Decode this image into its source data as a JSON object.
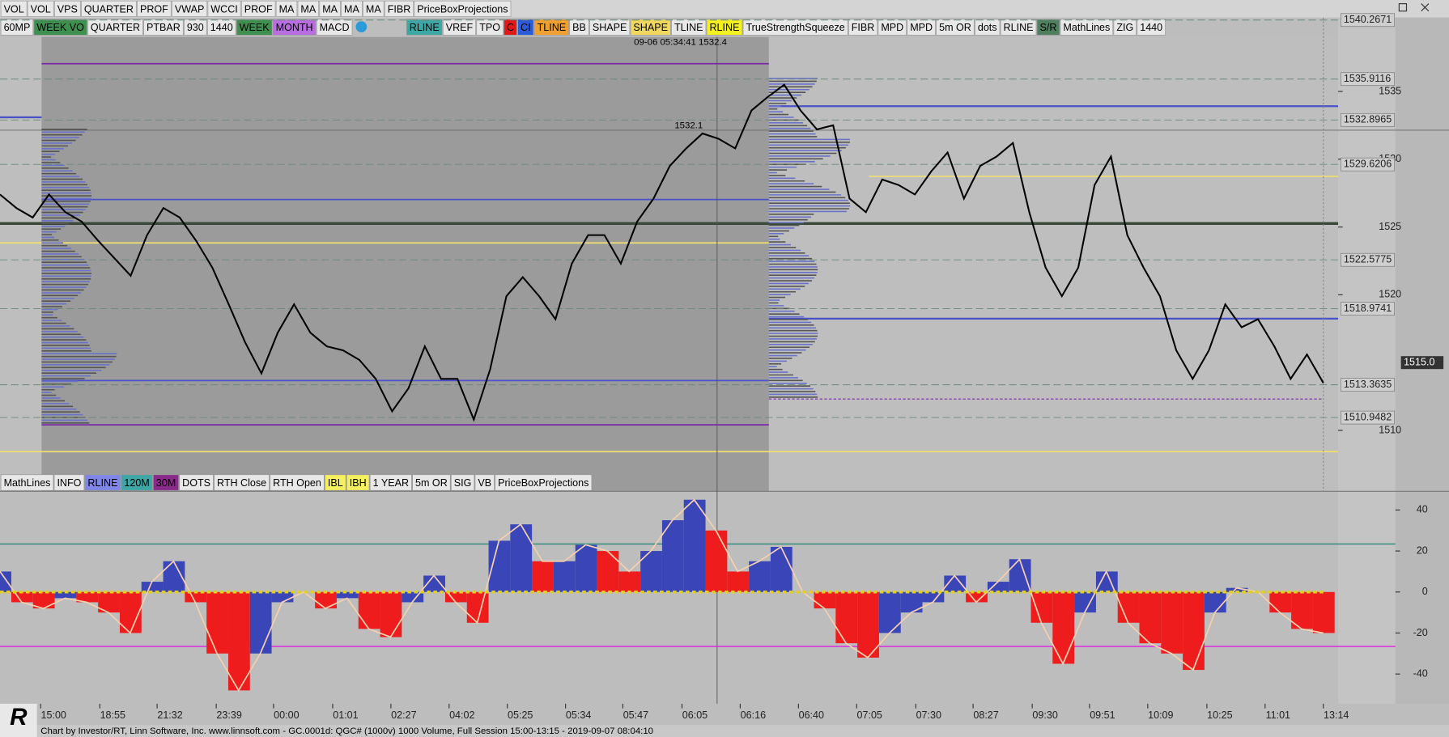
{
  "toolbar_top": [
    {
      "label": "VOL"
    },
    {
      "label": "VOL"
    },
    {
      "label": "VPS"
    },
    {
      "label": "QUARTER"
    },
    {
      "label": "PROF"
    },
    {
      "label": "VWAP"
    },
    {
      "label": "WCCI"
    },
    {
      "label": "PROF"
    },
    {
      "label": "MA"
    },
    {
      "label": "MA"
    },
    {
      "label": "MA"
    },
    {
      "label": "MA"
    },
    {
      "label": "MA"
    },
    {
      "label": "FIBR"
    },
    {
      "label": "PriceBoxProjections"
    }
  ],
  "toolbar_indicators": [
    {
      "label": "60MP"
    },
    {
      "label": "WEEK VO",
      "color": "#3f8f4f"
    },
    {
      "label": "QUARTER"
    },
    {
      "label": "PTBAR"
    },
    {
      "label": "930"
    },
    {
      "label": "1440"
    },
    {
      "label": "WEEK",
      "color": "#3f8f4f"
    },
    {
      "label": "MONTH",
      "color": "#b86ee0"
    },
    {
      "label": "MACD"
    },
    {
      "label": "RLINE",
      "color": "#3fa6a6"
    },
    {
      "label": "VREF"
    },
    {
      "label": "TPO"
    },
    {
      "label": "C",
      "color": "#e01818"
    },
    {
      "label": "CI",
      "color": "#2a5bd8"
    },
    {
      "label": "TLINE",
      "color": "#f0a030"
    },
    {
      "label": "BB"
    },
    {
      "label": "SHAPE"
    },
    {
      "label": "SHAPE",
      "color": "#f0d860"
    },
    {
      "label": "TLINE"
    },
    {
      "label": "RLINE",
      "color": "#f5f020"
    },
    {
      "label": "TrueStrengthSqueeze"
    },
    {
      "label": "FIBR"
    },
    {
      "label": "MPD"
    },
    {
      "label": "MPD"
    },
    {
      "label": "5m OR"
    },
    {
      "label": "dots"
    },
    {
      "label": "RLINE"
    },
    {
      "label": "S/R",
      "color": "#4f7f5f"
    },
    {
      "label": "MathLines"
    },
    {
      "label": "ZIG"
    },
    {
      "label": "1440"
    }
  ],
  "toolbar_lower": [
    {
      "label": "MathLines"
    },
    {
      "label": "INFO"
    },
    {
      "label": "RLINE",
      "color": "#7f86e6"
    },
    {
      "label": "120M",
      "color": "#3fa6a6"
    },
    {
      "label": "30M",
      "color": "#8a2a8a"
    },
    {
      "label": "DOTS"
    },
    {
      "label": "RTH Close"
    },
    {
      "label": "RTH Open"
    },
    {
      "label": "IBL",
      "color": "#f5f060"
    },
    {
      "label": "IBH",
      "color": "#f5f060"
    },
    {
      "label": "1 YEAR"
    },
    {
      "label": "5m OR"
    },
    {
      "label": "SIG"
    },
    {
      "label": "VB"
    },
    {
      "label": "PriceBoxProjections"
    }
  ],
  "cursor_readout": "09-06 05:34:41 1532.4",
  "cursor_price": "1532.1",
  "price_axis": {
    "ticks": [
      1535,
      1530,
      1525,
      1520,
      1510
    ],
    "levels": [
      1540.2671,
      1535.9116,
      1532.8965,
      1529.6206,
      1522.5775,
      1518.9741,
      1513.3635,
      1510.9482
    ],
    "last": {
      "value": 1515,
      "label": "1515.0"
    }
  },
  "price_chart": {
    "values": [
      1527.4,
      1526.4,
      1525.7,
      1527.4,
      1526.1,
      1525.4,
      1524.0,
      1522.7,
      1521.4,
      1524.4,
      1526.4,
      1525.7,
      1524.0,
      1522.0,
      1519.3,
      1516.5,
      1514.2,
      1517.2,
      1519.3,
      1517.2,
      1516.2,
      1515.9,
      1515.2,
      1513.8,
      1511.4,
      1513.1,
      1516.2,
      1513.8,
      1513.8,
      1510.8,
      1514.5,
      1519.9,
      1521.3,
      1519.9,
      1518.2,
      1522.3,
      1524.4,
      1524.4,
      1522.3,
      1525.4,
      1527.1,
      1529.5,
      1530.8,
      1531.9,
      1531.5,
      1530.8,
      1533.6,
      1534.6,
      1535.5,
      1533.6,
      1532.2,
      1532.5,
      1527.1,
      1526.1,
      1528.5,
      1528.1,
      1527.4,
      1529.1,
      1530.5,
      1527.1,
      1529.5,
      1530.2,
      1531.2,
      1526.1,
      1522.0,
      1519.9,
      1522.0,
      1528.1,
      1530.2,
      1524.4,
      1522.0,
      1519.9,
      1515.9,
      1513.8,
      1515.9,
      1519.3,
      1517.6,
      1518.2,
      1516.2,
      1513.8,
      1515.6,
      1513.5
    ]
  },
  "oscillator": {
    "ticks": [
      40,
      20,
      0,
      -20,
      -40
    ],
    "values": [
      10,
      -5,
      -8,
      -3,
      -5,
      -10,
      -20,
      5,
      15,
      -5,
      -30,
      -48,
      -30,
      -5,
      0,
      -8,
      -3,
      -18,
      -22,
      -5,
      8,
      -5,
      -15,
      25,
      33,
      15,
      15,
      23,
      20,
      10,
      20,
      35,
      45,
      30,
      10,
      15,
      22,
      0,
      -8,
      -25,
      -32,
      -20,
      -10,
      -5,
      8,
      -5,
      5,
      16,
      -15,
      -35,
      -10,
      10,
      -15,
      -25,
      -30,
      -38,
      -10,
      2,
      0,
      -10,
      -18,
      -20
    ]
  },
  "time_axis": {
    "labels": [
      "15:00",
      "18:55",
      "21:32",
      "23:39",
      "00:00",
      "01:01",
      "02:27",
      "04:02",
      "05:25",
      "05:34",
      "05:47",
      "06:05",
      "06:16",
      "06:40",
      "07:05",
      "07:30",
      "08:27",
      "09:30",
      "09:51",
      "10:09",
      "10:25",
      "11:01",
      "13:14"
    ]
  },
  "logo": "R",
  "footer": "Chart by Investor/RT, Linn Software, Inc. www.linnsoft.com - GC.0001d: QGC# (1000v) 1000 Volume, Full Session 15:00-13:15 - 2019-09-07 08:04:10"
}
